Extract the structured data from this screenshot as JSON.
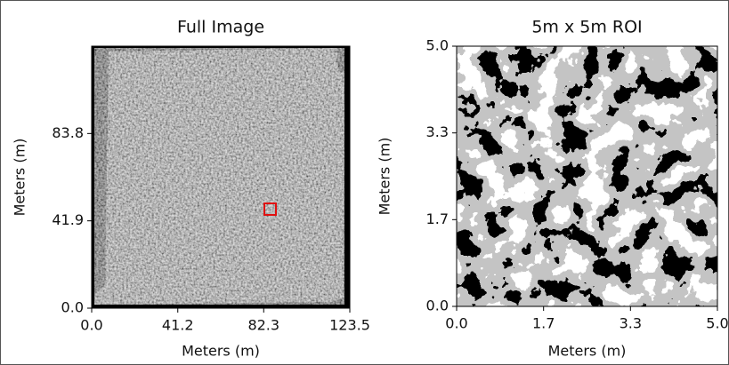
{
  "chart_data": [
    {
      "type": "image",
      "title": "Full Image",
      "xlabel": "Meters (m)",
      "ylabel": "Meters (m)",
      "xlim": [
        0,
        123.5
      ],
      "ylim": [
        0,
        125.7
      ],
      "xticks": [
        {
          "value": 0,
          "label": "0.0"
        },
        41.2,
        82.3,
        123.5
      ],
      "yticks": [
        {
          "value": 0,
          "label": "0.0"
        },
        41.9,
        83.8
      ]
    },
    {
      "type": "image",
      "title": "5m x 5m ROI",
      "xlabel": "Meters (m)",
      "ylabel": "Meters (m)",
      "xlim": [
        0,
        5
      ],
      "ylim": [
        0,
        5
      ],
      "xticks": [
        {
          "value": 0,
          "label": "0.0"
        },
        {
          "value": 1.667,
          "label": "1.7"
        },
        {
          "value": 3.333,
          "label": "3.3"
        },
        {
          "value": 5,
          "label": "5.0"
        }
      ],
      "yticks": [
        {
          "value": 0,
          "label": "0.0"
        },
        {
          "value": 1.667,
          "label": "1.7"
        },
        {
          "value": 3.333,
          "label": "3.3"
        },
        {
          "value": 5,
          "label": "5.0"
        }
      ]
    }
  ]
}
